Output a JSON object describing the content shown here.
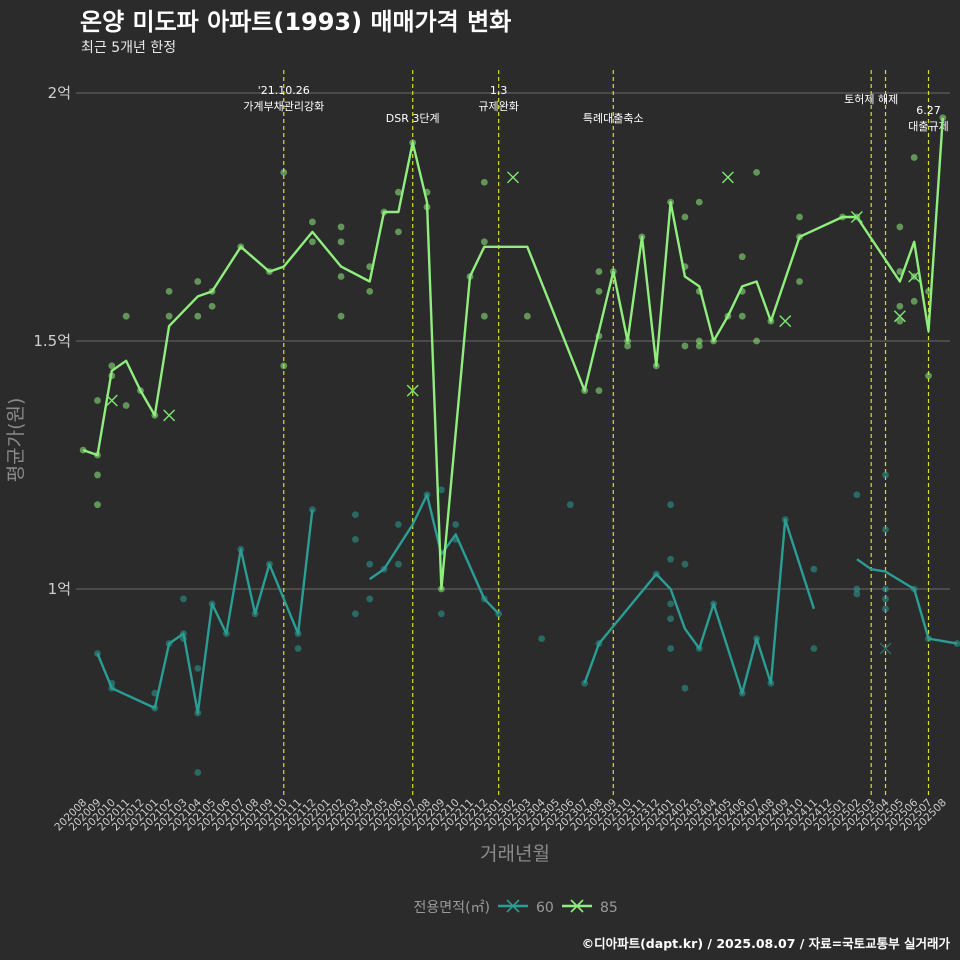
{
  "chart_data": {
    "type": "line",
    "title": "온양 미도파 아파트(1993) 매매가격 변화",
    "subtitle": "최근 5개년 한정",
    "xlabel": "거래년월",
    "ylabel": "평균가(원)",
    "caption": "©디아파트(dapt.kr) / 2025.08.07 / 자료=국토교통부 실거래가",
    "ylim": [
      0.6,
      2.05
    ],
    "grid": true,
    "legend": {
      "title": "전용면적(㎡)",
      "placement": "bottom",
      "entries": [
        "60",
        "85"
      ]
    },
    "y_ticks": [
      {
        "value": 1.0,
        "label": "1억"
      },
      {
        "value": 1.5,
        "label": "1.5억"
      },
      {
        "value": 2.0,
        "label": "2억"
      }
    ],
    "x_categories": [
      "202008",
      "202009",
      "202010",
      "202011",
      "202012",
      "202101",
      "202102",
      "202103",
      "202104",
      "202105",
      "202106",
      "202107",
      "202108",
      "202109",
      "202110",
      "202111",
      "202112",
      "202201",
      "202202",
      "202203",
      "202204",
      "202205",
      "202206",
      "202207",
      "202208",
      "202209",
      "202210",
      "202211",
      "202212",
      "202301",
      "202302",
      "202303",
      "202304",
      "202305",
      "202306",
      "202307",
      "202308",
      "202309",
      "202310",
      "202311",
      "202312",
      "202401",
      "202402",
      "202403",
      "202404",
      "202405",
      "202406",
      "202407",
      "202408",
      "202409",
      "202410",
      "202411",
      "202412",
      "202501",
      "202502",
      "202503",
      "202504",
      "202505",
      "202506",
      "202507",
      "202508"
    ],
    "annotations": [
      {
        "x": 14,
        "lines": [
          "'21.10.26",
          "가계부채관리강화"
        ]
      },
      {
        "x": 23,
        "lines": [
          "DSR 3단계"
        ]
      },
      {
        "x": 29,
        "lines": [
          "1.3",
          "규제완화"
        ]
      },
      {
        "x": 37,
        "lines": [
          "특례대출축소"
        ]
      },
      {
        "x": 55,
        "lines": [
          "토허제 해제"
        ]
      },
      {
        "x": 56,
        "lines": []
      },
      {
        "x": 59,
        "lines": [
          "6.27",
          "대출규제"
        ]
      }
    ],
    "colors": {
      "s60": "#2a9d94",
      "s85": "#90ee7e",
      "vline": "#d8e020",
      "grid": "#5e5e5e"
    },
    "series": [
      {
        "name": "60",
        "color": "#2a9d94",
        "line": [
          [
            1,
            0.87
          ],
          [
            2,
            0.8
          ],
          [
            5,
            0.76
          ],
          [
            6,
            0.89
          ],
          [
            7,
            0.91
          ],
          [
            8,
            0.75
          ],
          [
            9,
            0.97
          ],
          [
            10,
            0.91
          ],
          [
            11,
            1.08
          ],
          [
            12,
            0.95
          ],
          [
            13,
            1.05
          ],
          [
            15,
            0.91
          ],
          [
            16,
            1.16
          ],
          [
            null,
            null
          ],
          [
            20,
            1.02
          ],
          [
            21,
            1.04
          ],
          [
            23,
            1.13
          ],
          [
            24,
            1.19
          ],
          [
            25,
            1.07
          ],
          [
            26,
            1.11
          ],
          [
            28,
            0.98
          ],
          [
            29,
            0.95
          ],
          [
            null,
            null
          ],
          [
            35,
            0.81
          ],
          [
            36,
            0.89
          ],
          [
            40,
            1.03
          ],
          [
            41,
            1.0
          ],
          [
            42,
            0.92
          ],
          [
            43,
            0.88
          ],
          [
            44,
            0.97
          ],
          [
            46,
            0.79
          ],
          [
            47,
            0.9
          ],
          [
            48,
            0.81
          ],
          [
            49,
            1.14
          ],
          [
            51,
            0.96
          ],
          [
            null,
            null
          ],
          [
            54,
            1.06
          ],
          [
            55,
            1.04
          ],
          [
            56,
            1.035
          ],
          [
            58,
            1.0
          ],
          [
            59,
            0.9
          ],
          [
            61,
            0.89
          ]
        ],
        "points": [
          [
            1,
            0.87
          ],
          [
            2,
            0.8
          ],
          [
            2,
            0.81
          ],
          [
            5,
            0.79
          ],
          [
            5,
            0.76
          ],
          [
            6,
            0.89
          ],
          [
            7,
            0.98
          ],
          [
            7,
            0.91
          ],
          [
            7,
            0.9
          ],
          [
            8,
            0.75
          ],
          [
            8,
            0.84
          ],
          [
            8,
            0.63
          ],
          [
            9,
            0.97
          ],
          [
            10,
            0.91
          ],
          [
            11,
            1.08
          ],
          [
            12,
            0.95
          ],
          [
            13,
            1.05
          ],
          [
            15,
            0.91
          ],
          [
            15,
            0.88
          ],
          [
            16,
            1.16
          ],
          [
            19,
            1.15
          ],
          [
            19,
            1.1
          ],
          [
            19,
            0.95
          ],
          [
            20,
            1.05
          ],
          [
            20,
            0.98
          ],
          [
            21,
            1.04
          ],
          [
            22,
            1.13
          ],
          [
            22,
            1.05
          ],
          [
            24,
            1.19
          ],
          [
            25,
            1.2
          ],
          [
            25,
            0.95
          ],
          [
            26,
            1.13
          ],
          [
            26,
            1.1
          ],
          [
            28,
            0.98
          ],
          [
            29,
            0.95
          ],
          [
            32,
            0.9
          ],
          [
            34,
            1.17
          ],
          [
            35,
            0.81
          ],
          [
            36,
            0.89
          ],
          [
            40,
            1.03
          ],
          [
            41,
            1.17
          ],
          [
            41,
            1.06
          ],
          [
            41,
            0.97
          ],
          [
            41,
            0.94
          ],
          [
            41,
            0.88
          ],
          [
            42,
            1.05
          ],
          [
            42,
            0.8
          ],
          [
            43,
            0.88
          ],
          [
            44,
            0.97
          ],
          [
            46,
            0.79
          ],
          [
            47,
            0.9
          ],
          [
            48,
            0.81
          ],
          [
            49,
            1.14
          ],
          [
            51,
            1.04
          ],
          [
            51,
            0.88
          ],
          [
            54,
            1.19
          ],
          [
            54,
            1.0
          ],
          [
            54,
            0.99
          ],
          [
            56,
            1.23
          ],
          [
            56,
            1.12
          ],
          [
            56,
            1.0
          ],
          [
            56,
            0.98
          ],
          [
            56,
            0.96
          ],
          [
            58,
            1.0
          ],
          [
            59,
            0.9
          ],
          [
            61,
            0.89
          ]
        ],
        "crosses": [
          [
            56,
            0.88
          ]
        ]
      },
      {
        "name": "85",
        "color": "#90ee7e",
        "line": [
          [
            0,
            1.28
          ],
          [
            1,
            1.27
          ],
          [
            2,
            1.44
          ],
          [
            3,
            1.46
          ],
          [
            4,
            1.4
          ],
          [
            5,
            1.35
          ],
          [
            6,
            1.53
          ],
          [
            7,
            1.56
          ],
          [
            8,
            1.59
          ],
          [
            9,
            1.6
          ],
          [
            11,
            1.69
          ],
          [
            13,
            1.64
          ],
          [
            14,
            1.65
          ],
          [
            16,
            1.72
          ],
          [
            18,
            1.65
          ],
          [
            20,
            1.62
          ],
          [
            21,
            1.76
          ],
          [
            22,
            1.76
          ],
          [
            23,
            1.9
          ],
          [
            24,
            1.78
          ],
          [
            25,
            1.0
          ],
          [
            27,
            1.63
          ],
          [
            28,
            1.69
          ],
          [
            31,
            1.69
          ],
          [
            35,
            1.4
          ],
          [
            37,
            1.64
          ],
          [
            38,
            1.5
          ],
          [
            39,
            1.71
          ],
          [
            40,
            1.45
          ],
          [
            41,
            1.78
          ],
          [
            42,
            1.63
          ],
          [
            43,
            1.61
          ],
          [
            44,
            1.5
          ],
          [
            45,
            1.55
          ],
          [
            46,
            1.61
          ],
          [
            47,
            1.62
          ],
          [
            48,
            1.54
          ],
          [
            50,
            1.71
          ],
          [
            53,
            1.75
          ],
          [
            54,
            1.75
          ],
          [
            57,
            1.62
          ],
          [
            58,
            1.7
          ],
          [
            59,
            1.52
          ],
          [
            60,
            1.95
          ]
        ],
        "points": [
          [
            0,
            1.28
          ],
          [
            1,
            1.38
          ],
          [
            1,
            1.27
          ],
          [
            1,
            1.23
          ],
          [
            1,
            1.17
          ],
          [
            2,
            1.45
          ],
          [
            2,
            1.43
          ],
          [
            3,
            1.55
          ],
          [
            3,
            1.37
          ],
          [
            4,
            1.4
          ],
          [
            5,
            1.35
          ],
          [
            6,
            1.6
          ],
          [
            6,
            1.55
          ],
          [
            8,
            1.62
          ],
          [
            8,
            1.55
          ],
          [
            9,
            1.6
          ],
          [
            9,
            1.57
          ],
          [
            11,
            1.69
          ],
          [
            13,
            1.64
          ],
          [
            14,
            1.84
          ],
          [
            14,
            1.45
          ],
          [
            16,
            1.74
          ],
          [
            16,
            1.7
          ],
          [
            18,
            1.73
          ],
          [
            18,
            1.7
          ],
          [
            18,
            1.63
          ],
          [
            18,
            1.55
          ],
          [
            20,
            1.65
          ],
          [
            20,
            1.6
          ],
          [
            21,
            1.76
          ],
          [
            22,
            1.8
          ],
          [
            22,
            1.72
          ],
          [
            23,
            1.9
          ],
          [
            24,
            1.8
          ],
          [
            24,
            1.77
          ],
          [
            25,
            1.0
          ],
          [
            27,
            1.63
          ],
          [
            28,
            1.82
          ],
          [
            28,
            1.7
          ],
          [
            28,
            1.55
          ],
          [
            31,
            1.55
          ],
          [
            35,
            1.4
          ],
          [
            36,
            1.64
          ],
          [
            36,
            1.6
          ],
          [
            36,
            1.51
          ],
          [
            36,
            1.4
          ],
          [
            37,
            1.64
          ],
          [
            38,
            1.5
          ],
          [
            38,
            1.49
          ],
          [
            39,
            1.71
          ],
          [
            40,
            1.45
          ],
          [
            41,
            1.78
          ],
          [
            42,
            1.75
          ],
          [
            42,
            1.65
          ],
          [
            42,
            1.49
          ],
          [
            43,
            1.78
          ],
          [
            43,
            1.6
          ],
          [
            43,
            1.5
          ],
          [
            43,
            1.49
          ],
          [
            44,
            1.5
          ],
          [
            45,
            1.55
          ],
          [
            46,
            1.67
          ],
          [
            46,
            1.6
          ],
          [
            46,
            1.55
          ],
          [
            47,
            1.84
          ],
          [
            47,
            1.5
          ],
          [
            48,
            1.54
          ],
          [
            50,
            1.75
          ],
          [
            50,
            1.71
          ],
          [
            50,
            1.62
          ],
          [
            53,
            1.75
          ],
          [
            54,
            1.75
          ],
          [
            57,
            1.73
          ],
          [
            57,
            1.64
          ],
          [
            57,
            1.57
          ],
          [
            57,
            1.54
          ],
          [
            58,
            1.87
          ],
          [
            58,
            1.63
          ],
          [
            58,
            1.58
          ],
          [
            59,
            1.6
          ],
          [
            59,
            1.43
          ],
          [
            60,
            1.95
          ]
        ],
        "crosses": [
          [
            2,
            1.38
          ],
          [
            6,
            1.35
          ],
          [
            23,
            1.4
          ],
          [
            30,
            1.83
          ],
          [
            45,
            1.83
          ],
          [
            49,
            1.54
          ],
          [
            54,
            1.75
          ],
          [
            57,
            1.55
          ],
          [
            58,
            1.63
          ]
        ]
      }
    ]
  }
}
